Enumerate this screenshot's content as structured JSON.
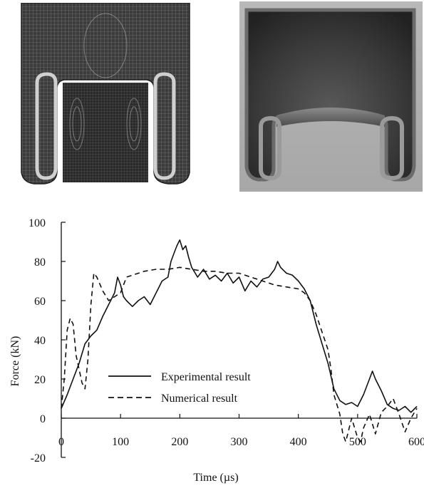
{
  "panels": {
    "simulation": {
      "description_icon": "fe-mesh-tube"
    },
    "photo": {
      "description_icon": "specimen-photo"
    }
  },
  "chart_data": {
    "type": "line",
    "xlabel": "Time (µs)",
    "ylabel": "Force (kN)",
    "xlim": [
      0,
      600
    ],
    "ylim": [
      -20,
      100
    ],
    "xticks": [
      "0",
      "100",
      "200",
      "300",
      "400",
      "500",
      "600"
    ],
    "yticks": [
      "-20",
      "0",
      "20",
      "40",
      "60",
      "80",
      "100"
    ],
    "legend_position": "lower-center",
    "grid": false,
    "series": [
      {
        "name": "Experimental result",
        "style": "solid",
        "points": [
          [
            0,
            5
          ],
          [
            10,
            12
          ],
          [
            20,
            20
          ],
          [
            30,
            28
          ],
          [
            40,
            38
          ],
          [
            50,
            42
          ],
          [
            60,
            45
          ],
          [
            70,
            52
          ],
          [
            80,
            58
          ],
          [
            90,
            64
          ],
          [
            95,
            72
          ],
          [
            100,
            68
          ],
          [
            105,
            62
          ],
          [
            110,
            60
          ],
          [
            120,
            57
          ],
          [
            130,
            60
          ],
          [
            140,
            62
          ],
          [
            150,
            58
          ],
          [
            160,
            64
          ],
          [
            170,
            70
          ],
          [
            180,
            72
          ],
          [
            185,
            80
          ],
          [
            190,
            84
          ],
          [
            195,
            88
          ],
          [
            200,
            91
          ],
          [
            205,
            86
          ],
          [
            210,
            88
          ],
          [
            215,
            82
          ],
          [
            220,
            77
          ],
          [
            230,
            72
          ],
          [
            240,
            76
          ],
          [
            250,
            71
          ],
          [
            260,
            73
          ],
          [
            270,
            70
          ],
          [
            280,
            74
          ],
          [
            290,
            69
          ],
          [
            300,
            72
          ],
          [
            310,
            65
          ],
          [
            320,
            70
          ],
          [
            330,
            67
          ],
          [
            340,
            71
          ],
          [
            350,
            72
          ],
          [
            360,
            76
          ],
          [
            365,
            80
          ],
          [
            370,
            77
          ],
          [
            380,
            74
          ],
          [
            390,
            73
          ],
          [
            400,
            70
          ],
          [
            410,
            66
          ],
          [
            420,
            60
          ],
          [
            430,
            48
          ],
          [
            440,
            38
          ],
          [
            450,
            28
          ],
          [
            460,
            15
          ],
          [
            470,
            9
          ],
          [
            480,
            7
          ],
          [
            490,
            8
          ],
          [
            500,
            6
          ],
          [
            510,
            12
          ],
          [
            520,
            20
          ],
          [
            525,
            24
          ],
          [
            530,
            20
          ],
          [
            540,
            14
          ],
          [
            550,
            7
          ],
          [
            560,
            5
          ],
          [
            570,
            4
          ],
          [
            580,
            6
          ],
          [
            590,
            3
          ],
          [
            600,
            6
          ]
        ]
      },
      {
        "name": "Numerical result",
        "style": "dashed",
        "points": [
          [
            0,
            5
          ],
          [
            5,
            20
          ],
          [
            10,
            45
          ],
          [
            15,
            51
          ],
          [
            20,
            48
          ],
          [
            25,
            32
          ],
          [
            30,
            25
          ],
          [
            35,
            18
          ],
          [
            40,
            15
          ],
          [
            45,
            30
          ],
          [
            50,
            58
          ],
          [
            55,
            74
          ],
          [
            60,
            72
          ],
          [
            70,
            65
          ],
          [
            80,
            60
          ],
          [
            90,
            62
          ],
          [
            100,
            64
          ],
          [
            110,
            72
          ],
          [
            120,
            73
          ],
          [
            140,
            75
          ],
          [
            160,
            76
          ],
          [
            180,
            76
          ],
          [
            200,
            77
          ],
          [
            220,
            76
          ],
          [
            240,
            75
          ],
          [
            260,
            75
          ],
          [
            280,
            74
          ],
          [
            300,
            74
          ],
          [
            320,
            72
          ],
          [
            340,
            70
          ],
          [
            360,
            68
          ],
          [
            380,
            67
          ],
          [
            400,
            66
          ],
          [
            410,
            64
          ],
          [
            420,
            60
          ],
          [
            430,
            53
          ],
          [
            440,
            44
          ],
          [
            450,
            35
          ],
          [
            455,
            25
          ],
          [
            460,
            12
          ],
          [
            470,
            2
          ],
          [
            475,
            -8
          ],
          [
            480,
            -12
          ],
          [
            490,
            0
          ],
          [
            500,
            -10
          ],
          [
            505,
            -12
          ],
          [
            510,
            -5
          ],
          [
            520,
            2
          ],
          [
            530,
            -8
          ],
          [
            540,
            3
          ],
          [
            550,
            6
          ],
          [
            560,
            10
          ],
          [
            570,
            2
          ],
          [
            580,
            -7
          ],
          [
            590,
            0
          ],
          [
            600,
            5
          ]
        ]
      }
    ]
  }
}
